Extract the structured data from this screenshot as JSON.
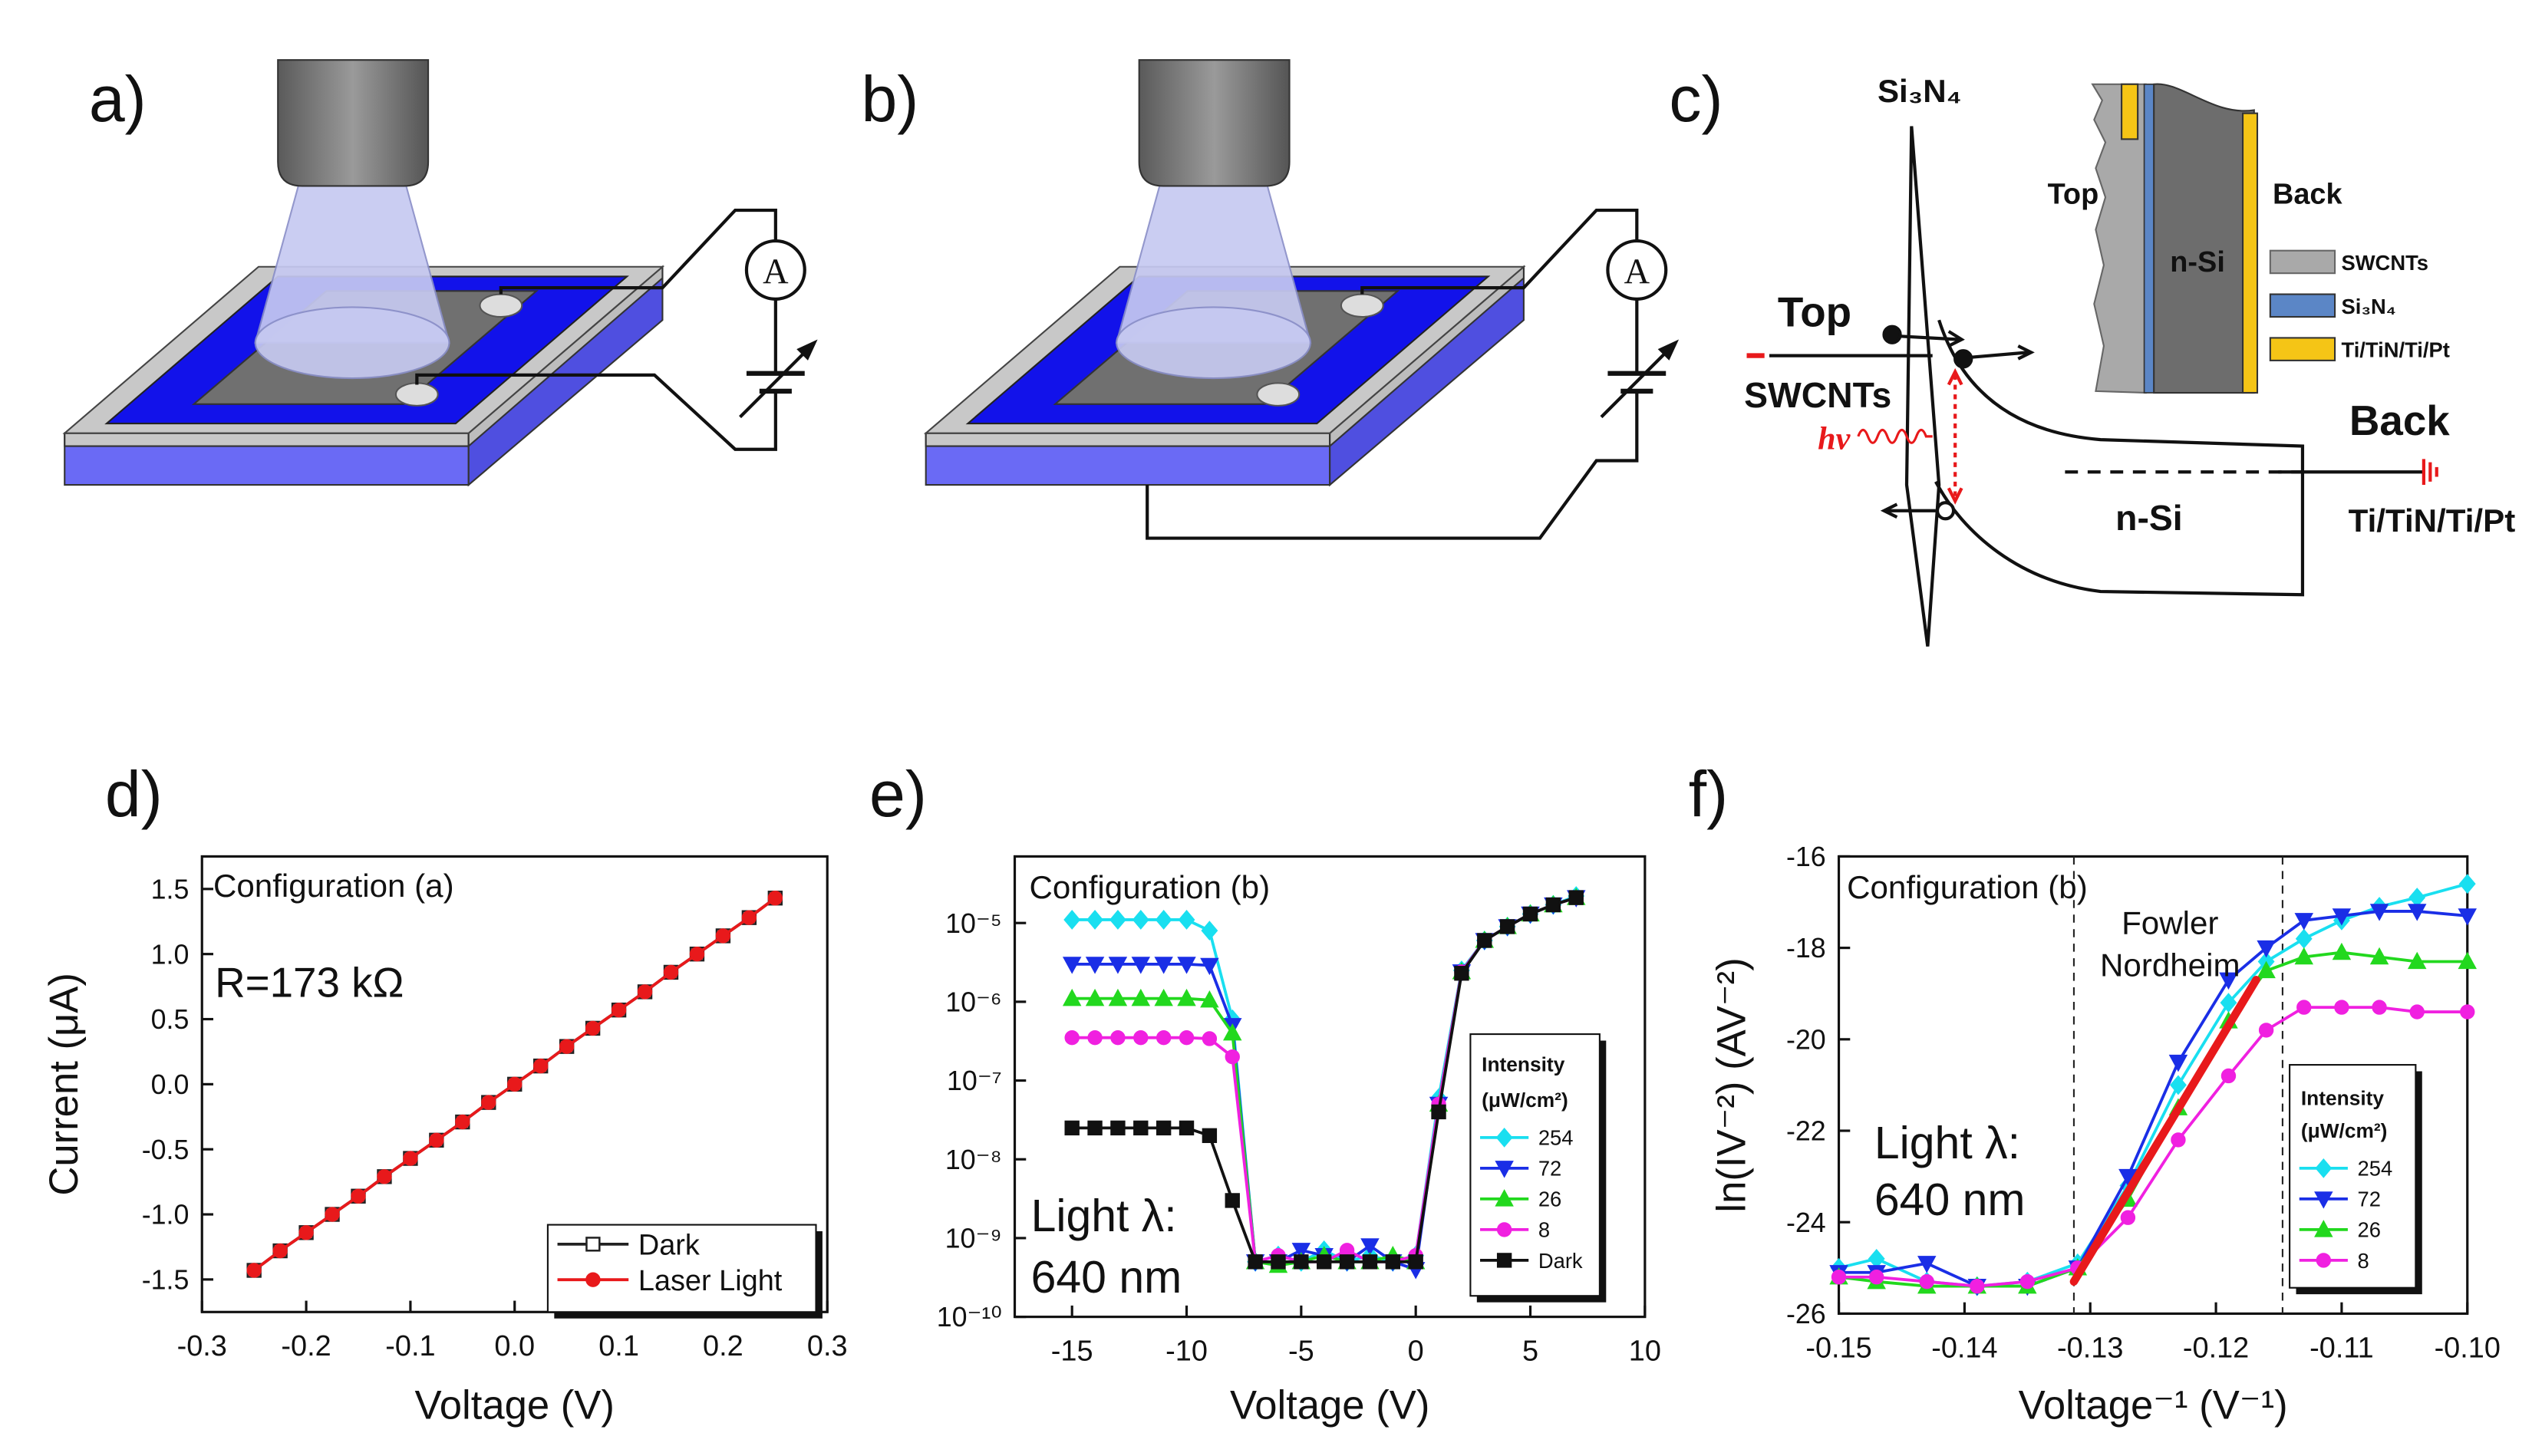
{
  "diagrams": {
    "a": {
      "label": "a)",
      "meter": "A"
    },
    "b": {
      "label": "b)",
      "meter": "A"
    },
    "c": {
      "label": "c)",
      "barrier": "Si₃N₄",
      "inset": {
        "top": "Top",
        "back": "Back",
        "substrate": "n-Si",
        "legend": [
          "SWCNTs",
          "Si₃N₄",
          "Ti/TiN/Ti/Pt"
        ]
      },
      "band": {
        "top": "Top",
        "top_material": "SWCNTs",
        "photon": "hν",
        "back": "Back",
        "substrate": "n-Si",
        "back_material": "Ti/TiN/Ti/Pt"
      }
    }
  },
  "chart_data": [
    {
      "type": "line",
      "label": "d)",
      "x_label": "Voltage (V)",
      "y_label": "Current (μA)",
      "annotations": [
        "Configuration (a)",
        "R=173 kΩ"
      ],
      "x": [
        -0.25,
        -0.225,
        -0.2,
        -0.175,
        -0.15,
        -0.125,
        -0.1,
        -0.075,
        -0.05,
        -0.025,
        0,
        0.025,
        0.05,
        0.075,
        0.1,
        0.125,
        0.15,
        0.175,
        0.2,
        0.225,
        0.25
      ],
      "series": [
        {
          "name": "Dark",
          "color": "#222222",
          "marker": "square",
          "filled": false,
          "values": [
            -1.43,
            -1.28,
            -1.14,
            -1.0,
            -0.86,
            -0.71,
            -0.57,
            -0.43,
            -0.29,
            -0.14,
            0,
            0.14,
            0.29,
            0.43,
            0.57,
            0.71,
            0.86,
            1.0,
            1.14,
            1.28,
            1.43
          ]
        },
        {
          "name": "Laser Light",
          "color": "#e8191b",
          "marker": "circle",
          "filled": true,
          "values": [
            -1.43,
            -1.28,
            -1.14,
            -1.0,
            -0.86,
            -0.71,
            -0.57,
            -0.43,
            -0.29,
            -0.14,
            0,
            0.14,
            0.29,
            0.43,
            0.57,
            0.71,
            0.86,
            1.0,
            1.14,
            1.28,
            1.43
          ]
        }
      ],
      "xlim": [
        -0.3,
        0.3
      ],
      "xticks": [
        -0.3,
        -0.2,
        -0.1,
        {
          "value": 0,
          "label": "0.0"
        },
        0.1,
        0.2,
        0.3
      ],
      "ylim": [
        -1.75,
        1.75
      ],
      "yticks": [
        -1.5,
        {
          "value": -1,
          "label": "-1.0"
        },
        -0.5,
        {
          "value": 0,
          "label": "0.0"
        },
        0.5,
        {
          "value": 1,
          "label": "1.0"
        },
        1.5
      ],
      "legend": "lower right",
      "grid": false
    },
    {
      "type": "line",
      "label": "e)",
      "x_label": "Voltage (V)",
      "log_y": true,
      "annotations": [
        "Configuration (b)",
        "Light λ:",
        "640 nm"
      ],
      "legend_title": [
        "Intensity",
        "(μW/cm²)"
      ],
      "x": [
        -15,
        -14,
        -13,
        -12,
        -11,
        -10,
        -9,
        -8,
        -7,
        -6,
        -5,
        -4,
        -3,
        -2,
        -1,
        0,
        1,
        2,
        3,
        4,
        5,
        6,
        7
      ],
      "series": [
        {
          "name": "254",
          "color": "#19dff0",
          "marker": "diamond",
          "filled": true,
          "values": [
            1.1e-05,
            1.1e-05,
            1.1e-05,
            1.1e-05,
            1.1e-05,
            1.1e-05,
            8e-06,
            6e-07,
            5e-10,
            6e-10,
            5e-10,
            7e-10,
            5e-10,
            6e-10,
            5e-10,
            6e-10,
            6e-08,
            2.5e-06,
            6e-06,
            9e-06,
            1.3e-05,
            1.7e-05,
            2.2e-05
          ]
        },
        {
          "name": "72",
          "color": "#1a2ee6",
          "marker": "triangle-down",
          "filled": true,
          "values": [
            3e-06,
            3e-06,
            3e-06,
            3e-06,
            3e-06,
            3e-06,
            2.9e-06,
            5e-07,
            5e-10,
            5e-10,
            7e-10,
            6e-10,
            5e-10,
            8e-10,
            5e-10,
            4e-10,
            5e-08,
            2.4e-06,
            6e-06,
            9e-06,
            1.3e-05,
            1.7e-05,
            2.1e-05
          ]
        },
        {
          "name": "26",
          "color": "#22d81e",
          "marker": "triangle-up",
          "filled": true,
          "values": [
            1.1e-06,
            1.1e-06,
            1.1e-06,
            1.1e-06,
            1.1e-06,
            1.1e-06,
            1.05e-06,
            4e-07,
            5e-10,
            4.5e-10,
            5e-10,
            6e-10,
            5e-10,
            5e-10,
            6e-10,
            5e-10,
            5e-08,
            2.4e-06,
            6e-06,
            9e-06,
            1.3e-05,
            1.7e-05,
            2.1e-05
          ]
        },
        {
          "name": "8",
          "color": "#f020e0",
          "marker": "circle",
          "filled": true,
          "values": [
            3.5e-07,
            3.5e-07,
            3.5e-07,
            3.5e-07,
            3.5e-07,
            3.5e-07,
            3.4e-07,
            2e-07,
            5e-10,
            6e-10,
            5e-10,
            5e-10,
            7e-10,
            5e-10,
            5e-10,
            6e-10,
            5e-08,
            2.4e-06,
            6e-06,
            9e-06,
            1.3e-05,
            1.7e-05,
            2.1e-05
          ]
        },
        {
          "name": "Dark",
          "color": "#111111",
          "marker": "square",
          "filled": true,
          "values": [
            2.5e-08,
            2.5e-08,
            2.5e-08,
            2.5e-08,
            2.5e-08,
            2.5e-08,
            2e-08,
            3e-09,
            5e-10,
            5e-10,
            5e-10,
            5e-10,
            5e-10,
            5e-10,
            5e-10,
            5e-10,
            4e-08,
            2.3e-06,
            6e-06,
            9e-06,
            1.3e-05,
            1.7e-05,
            2.1e-05
          ]
        }
      ],
      "xlim": [
        -17.5,
        10
      ],
      "xticks": [
        -15,
        -10,
        -5,
        0,
        5,
        10
      ],
      "ylim": [
        1e-10,
        7e-05
      ],
      "yticks": [
        {
          "value": 1e-10,
          "label": "10⁻¹⁰"
        },
        {
          "value": 1e-09,
          "label": "10⁻⁹"
        },
        {
          "value": 1e-08,
          "label": "10⁻⁸"
        },
        {
          "value": 1e-07,
          "label": "10⁻⁷"
        },
        {
          "value": 1e-06,
          "label": "10⁻⁶"
        },
        {
          "value": 1e-05,
          "label": "10⁻⁵"
        }
      ],
      "legend": "lower right",
      "grid": false
    },
    {
      "type": "line",
      "label": "f)",
      "x_label": "Voltage⁻¹ (V⁻¹)",
      "y_label": "ln(IV⁻²) (AV⁻²)",
      "annotations": [
        "Configuration (b)",
        "Fowler",
        "Nordheim",
        "Light λ:",
        "640 nm"
      ],
      "legend_title": [
        "Intensity",
        "(μW/cm²)"
      ],
      "x": [
        -0.15,
        -0.147,
        -0.143,
        -0.139,
        -0.135,
        -0.131,
        -0.127,
        -0.123,
        -0.119,
        -0.116,
        -0.113,
        -0.11,
        -0.107,
        -0.104,
        -0.1
      ],
      "series": [
        {
          "name": "254",
          "color": "#19dff0",
          "marker": "diamond",
          "filled": true,
          "values": [
            -25.0,
            -24.8,
            -25.3,
            -25.4,
            -25.3,
            -24.9,
            -23.2,
            -21.0,
            -19.2,
            -18.3,
            -17.8,
            -17.4,
            -17.1,
            -16.9,
            -16.6
          ]
        },
        {
          "name": "72",
          "color": "#1a2ee6",
          "marker": "triangle-down",
          "filled": true,
          "values": [
            -25.1,
            -25.1,
            -24.9,
            -25.4,
            -25.4,
            -25.0,
            -23.0,
            -20.5,
            -18.7,
            -18.0,
            -17.4,
            -17.3,
            -17.2,
            -17.2,
            -17.3
          ]
        },
        {
          "name": "26",
          "color": "#22d81e",
          "marker": "triangle-up",
          "filled": true,
          "values": [
            -25.2,
            -25.3,
            -25.4,
            -25.4,
            -25.4,
            -25.0,
            -23.5,
            -21.5,
            -19.6,
            -18.5,
            -18.2,
            -18.1,
            -18.2,
            -18.3,
            -18.3
          ]
        },
        {
          "name": "8",
          "color": "#f020e0",
          "marker": "circle",
          "filled": true,
          "values": [
            -25.2,
            -25.2,
            -25.3,
            -25.4,
            -25.3,
            -25.0,
            -23.9,
            -22.2,
            -20.8,
            -19.8,
            -19.3,
            -19.3,
            -19.3,
            -19.4,
            -19.4
          ]
        }
      ],
      "fit": {
        "x": [
          -0.1313,
          -0.1168
        ],
        "values": [
          -25.3,
          -18.7
        ],
        "color": "#e8191b"
      },
      "vlines": [
        -0.1313,
        -0.1147
      ],
      "xlim": [
        -0.15,
        -0.1
      ],
      "xticks": [
        -0.15,
        -0.14,
        -0.13,
        -0.12,
        -0.11,
        {
          "value": -0.1,
          "label": "-0.10"
        }
      ],
      "ylim": [
        -26,
        -16
      ],
      "yticks": [
        -26,
        -24,
        -22,
        -20,
        -18,
        -16
      ],
      "legend": "lower right",
      "grid": false
    }
  ]
}
